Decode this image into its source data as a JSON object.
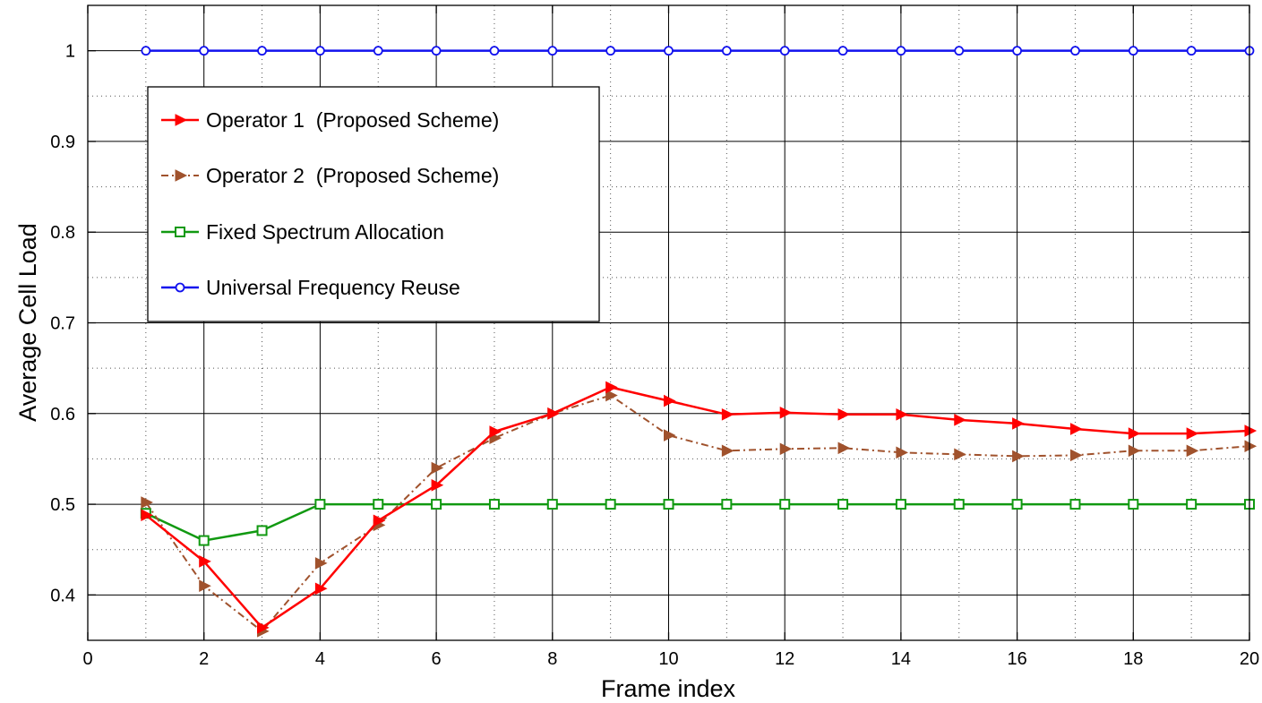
{
  "chart_data": {
    "type": "line",
    "title": "",
    "xlabel": "Frame index",
    "ylabel": "Average Cell Load",
    "xlim": [
      0,
      20
    ],
    "ylim": [
      0.35,
      1.05
    ],
    "xticks": [
      0,
      2,
      4,
      6,
      8,
      10,
      12,
      14,
      16,
      18,
      20
    ],
    "yticks": [
      0.4,
      0.5,
      0.6,
      0.7,
      0.8,
      0.9,
      1
    ],
    "ytick_labels": [
      "0.4",
      "0.5",
      "0.6",
      "0.7",
      "0.8",
      "0.9",
      "1"
    ],
    "grid": true,
    "legend_position": "upper-left",
    "x": [
      1,
      2,
      3,
      4,
      5,
      6,
      7,
      8,
      9,
      10,
      11,
      12,
      13,
      14,
      15,
      16,
      17,
      18,
      19,
      20
    ],
    "series": [
      {
        "name": "Operator 1  (Proposed Scheme)",
        "color": "#ff0000",
        "line_style": "solid",
        "marker": "triangle-right-filled",
        "values": [
          0.488,
          0.437,
          0.364,
          0.407,
          0.482,
          0.521,
          0.58,
          0.6,
          0.629,
          0.614,
          0.599,
          0.601,
          0.599,
          0.599,
          0.593,
          0.589,
          0.583,
          0.578,
          0.578,
          0.581
        ]
      },
      {
        "name": "Operator 2  (Proposed Scheme)",
        "color": "#a0522d",
        "line_style": "dash-dot",
        "marker": "triangle-right-filled",
        "values": [
          0.502,
          0.41,
          0.36,
          0.435,
          0.477,
          0.54,
          0.573,
          0.6,
          0.62,
          0.576,
          0.559,
          0.561,
          0.562,
          0.557,
          0.555,
          0.553,
          0.554,
          0.559,
          0.559,
          0.564
        ]
      },
      {
        "name": "Fixed Spectrum Allocation",
        "color": "#119911",
        "line_style": "solid",
        "marker": "square-open",
        "values": [
          0.49,
          0.46,
          0.471,
          0.5,
          0.5,
          0.5,
          0.5,
          0.5,
          0.5,
          0.5,
          0.5,
          0.5,
          0.5,
          0.5,
          0.5,
          0.5,
          0.5,
          0.5,
          0.5,
          0.5
        ]
      },
      {
        "name": "Universal Frequency Reuse",
        "color": "#1111ee",
        "line_style": "solid",
        "marker": "circle-open",
        "values": [
          1,
          1,
          1,
          1,
          1,
          1,
          1,
          1,
          1,
          1,
          1,
          1,
          1,
          1,
          1,
          1,
          1,
          1,
          1,
          1
        ]
      }
    ]
  }
}
